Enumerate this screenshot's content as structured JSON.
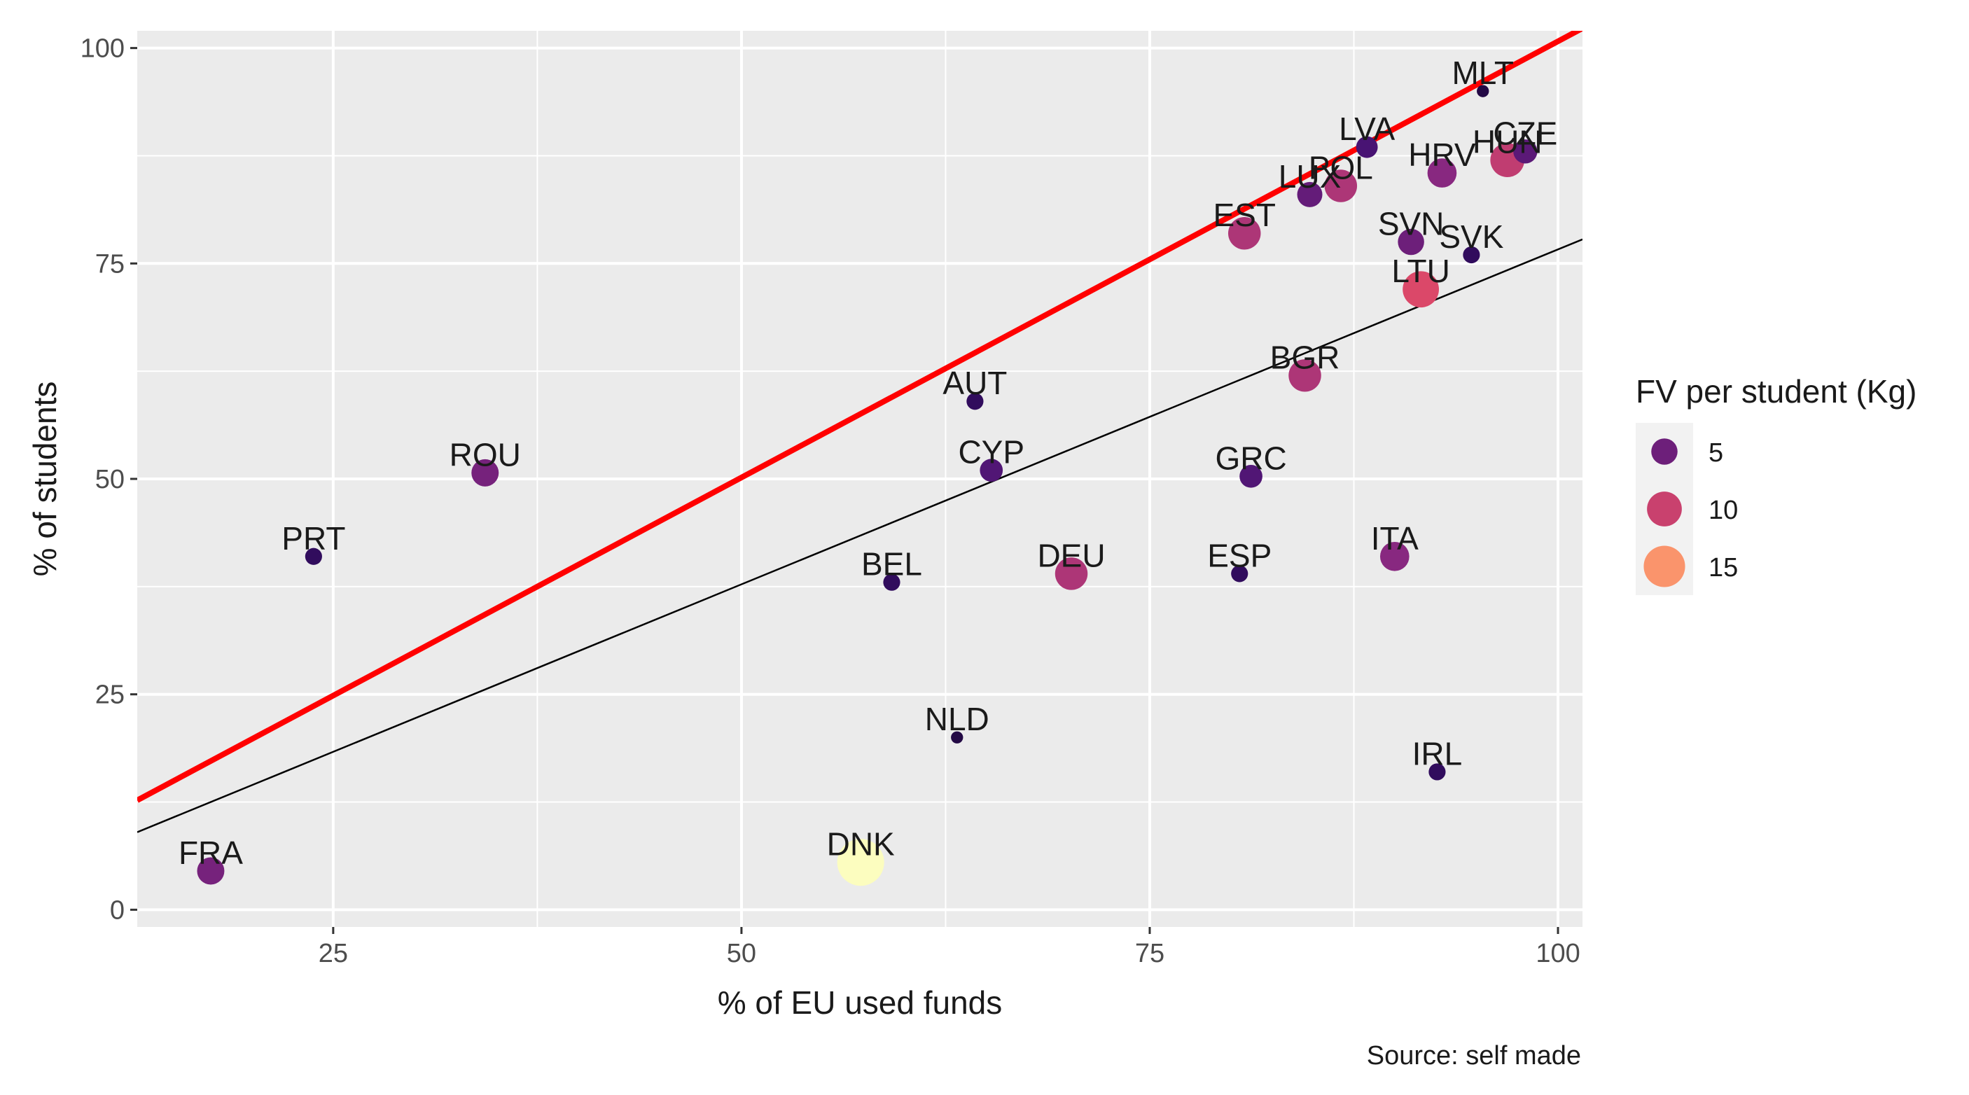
{
  "chart_data": {
    "type": "scatter",
    "xlabel": "% of EU used funds",
    "ylabel": "% of students",
    "caption": "Source: self made",
    "xlim": [
      13,
      101.5
    ],
    "ylim": [
      -2,
      102
    ],
    "x_ticks": [
      25,
      50,
      75,
      100
    ],
    "y_ticks": [
      0,
      25,
      50,
      75,
      100
    ],
    "grid": true,
    "legend": {
      "title": "FV per student (Kg)",
      "position": "right",
      "entries": [
        {
          "label": "5",
          "value": 5
        },
        {
          "label": "10",
          "value": 10
        },
        {
          "label": "15",
          "value": 15
        }
      ]
    },
    "colors": {
      "panel": "#ebebeb",
      "grid": "#ffffff",
      "red_line": "#ff0000",
      "fit_line": "#000000",
      "scale": [
        "#000004",
        "#3b0f70",
        "#8c2981",
        "#de4968",
        "#fe9f6d",
        "#fcfdbf"
      ]
    },
    "points": [
      {
        "label": "FRA",
        "x": 17.5,
        "y": 4.5,
        "fv": 5.5
      },
      {
        "label": "PRT",
        "x": 23.8,
        "y": 41,
        "fv": 1.5
      },
      {
        "label": "ROU",
        "x": 34.3,
        "y": 50.7,
        "fv": 5.5
      },
      {
        "label": "BEL",
        "x": 59.2,
        "y": 38,
        "fv": 1.5
      },
      {
        "label": "DNK",
        "x": 57.3,
        "y": 5.5,
        "fv": 20
      },
      {
        "label": "NLD",
        "x": 63.2,
        "y": 20,
        "fv": 0.5
      },
      {
        "label": "AUT",
        "x": 64.3,
        "y": 59,
        "fv": 1.5
      },
      {
        "label": "CYP",
        "x": 65.3,
        "y": 51,
        "fv": 3.5
      },
      {
        "label": "DEU",
        "x": 70.2,
        "y": 39,
        "fv": 8.5
      },
      {
        "label": "EST",
        "x": 80.8,
        "y": 78.5,
        "fv": 8.5
      },
      {
        "label": "ESP",
        "x": 80.5,
        "y": 39,
        "fv": 1.5
      },
      {
        "label": "GRC",
        "x": 81.2,
        "y": 50.3,
        "fv": 3.5
      },
      {
        "label": "BGR",
        "x": 84.5,
        "y": 62,
        "fv": 8.5
      },
      {
        "label": "LUX",
        "x": 84.8,
        "y": 83,
        "fv": 4.5
      },
      {
        "label": "POL",
        "x": 86.7,
        "y": 84,
        "fv": 8.5
      },
      {
        "label": "LVA",
        "x": 88.3,
        "y": 88.5,
        "fv": 3
      },
      {
        "label": "ITA",
        "x": 90,
        "y": 41,
        "fv": 6.5
      },
      {
        "label": "SVN",
        "x": 91,
        "y": 77.5,
        "fv": 5
      },
      {
        "label": "LTU",
        "x": 91.6,
        "y": 72,
        "fv": 11
      },
      {
        "label": "IRL",
        "x": 92.6,
        "y": 16,
        "fv": 1.5
      },
      {
        "label": "HRV",
        "x": 92.9,
        "y": 85.5,
        "fv": 6.5
      },
      {
        "label": "SVK",
        "x": 94.7,
        "y": 76,
        "fv": 1.5
      },
      {
        "label": "MLT",
        "x": 95.4,
        "y": 95,
        "fv": 0.5
      },
      {
        "label": "HUN",
        "x": 96.9,
        "y": 87,
        "fv": 9.5
      },
      {
        "label": "CZE",
        "x": 98,
        "y": 88,
        "fv": 4
      }
    ],
    "lines": [
      {
        "name": "red-line",
        "x1": 13,
        "y1": 12.7,
        "x2": 101.5,
        "y2": 102.3
      },
      {
        "name": "fit-line",
        "x1": 13,
        "y1": 9,
        "x2": 101.5,
        "y2": 77.8
      }
    ]
  }
}
